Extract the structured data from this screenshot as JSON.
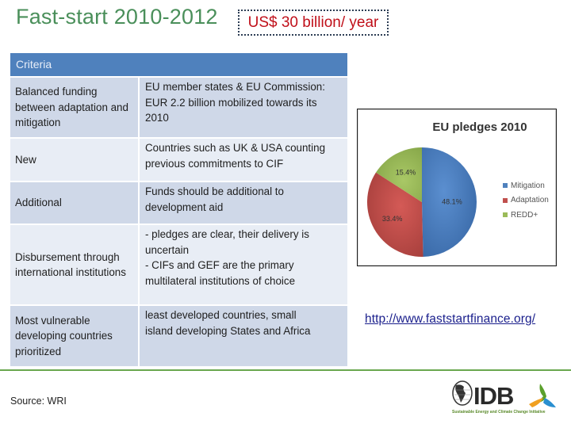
{
  "header": {
    "title": "Fast-start 2010-2012",
    "highlight": "US$ 30 billion/ year"
  },
  "table": {
    "header": "Criteria",
    "rows": [
      {
        "criterion": "Balanced funding between adaptation and mitigation",
        "detail_lines": [
          "EU member states & EU Commission:",
          "EUR 2.2 billion mobilized towards its",
          "2010"
        ]
      },
      {
        "criterion": "New",
        "detail_lines": [
          "Countries such as UK & USA counting",
          "previous commitments to CIF"
        ]
      },
      {
        "criterion": "Additional",
        "detail_lines": [
          "Funds should be additional to",
          "development aid"
        ]
      },
      {
        "criterion": "Disbursement through international institutions",
        "detail_lines": [
          "- pledges are clear, their delivery is",
          "uncertain",
          "- CIFs and GEF are the primary",
          "multilateral institutions of choice"
        ]
      },
      {
        "criterion": "Most vulnerable developing countries prioritized",
        "detail_lines": [
          "least developed countries, small",
          "island developing States and Africa"
        ]
      }
    ]
  },
  "footer": {
    "source": "Source: WRI",
    "link": "http://www.faststartfinance.org/",
    "logo_text": "IDB",
    "logo_tagline": "Sustainable Energy and Climate Change Initiative"
  },
  "colors": {
    "title_green": "#4a8f5a",
    "highlight_red": "#c0101a",
    "table_header": "#4f81bd",
    "row_dark": "#cfd8e8",
    "row_light": "#e8edf5",
    "divider_green": "#6aa84f",
    "link_blue": "#1a1f8c"
  },
  "chart_data": {
    "type": "pie",
    "title": "EU pledges 2010",
    "categories": [
      "Mitigation",
      "Adaptation",
      "REDD+"
    ],
    "values": [
      48.1,
      33.4,
      15.4
    ],
    "labels": [
      "48.1%",
      "33.4%",
      "15.4%"
    ],
    "colors": [
      "#4f81bd",
      "#c0504d",
      "#9bbb59"
    ],
    "legend_position": "right"
  }
}
